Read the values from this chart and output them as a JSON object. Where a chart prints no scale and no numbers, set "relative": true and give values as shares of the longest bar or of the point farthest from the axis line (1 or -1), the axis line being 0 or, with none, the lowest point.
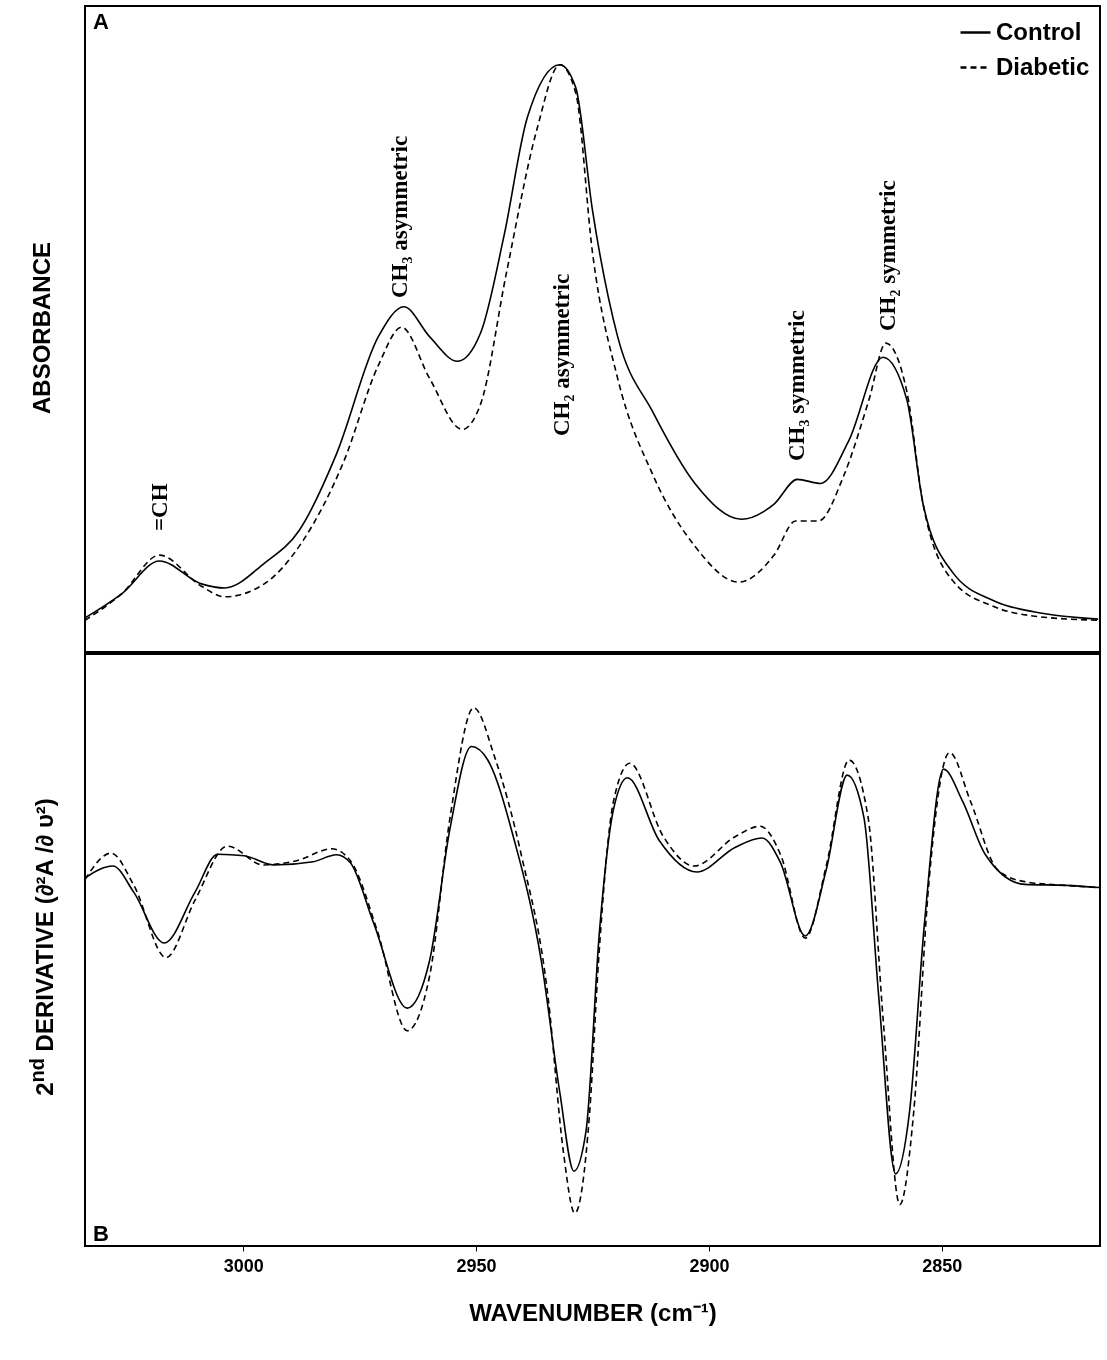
{
  "chart_data": [
    {
      "type": "line",
      "relative": true,
      "ylabel": "ABSORBANCE",
      "xlim": [
        3034,
        2816
      ],
      "xticks": [
        3000,
        2950,
        2900,
        2850
      ],
      "tick_labels": false,
      "legend": "top right",
      "grid": false,
      "annotations": [
        "A",
        "=CH",
        "CH₃ asymmetric",
        "CH₂ asymmetric",
        "CH₃ symmetric",
        "CH₂ symmetric"
      ],
      "series": [
        {
          "name": "Control",
          "color": "#000000",
          "line_style": "solid",
          "x": [
            3034,
            3026,
            3018,
            3009,
            3004,
            2995.5,
            2988,
            2980,
            2971,
            2965.5,
            2960,
            2954,
            2949,
            2944,
            2939,
            2932,
            2928.6,
            2925,
            2919.6,
            2912,
            2903,
            2893,
            2886,
            2881,
            2876,
            2870,
            2862.6,
            2857.5,
            2854,
            2847.7,
            2838.7,
            2830,
            2816.4
          ],
          "values": [
            0.058,
            0.1,
            0.155,
            0.116,
            0.109,
            0.151,
            0.207,
            0.337,
            0.537,
            0.588,
            0.537,
            0.495,
            0.544,
            0.709,
            0.91,
            1.0,
            0.961,
            0.752,
            0.537,
            0.408,
            0.287,
            0.226,
            0.252,
            0.294,
            0.287,
            0.359,
            0.502,
            0.43,
            0.252,
            0.136,
            0.087,
            0.068,
            0.056
          ]
        },
        {
          "name": "Diabetic",
          "color": "#000000",
          "line_style": "dashed",
          "x": [
            3034,
            3026,
            3018,
            3009,
            3004,
            2995.5,
            2987.4,
            2978.5,
            2971,
            2966,
            2960,
            2953,
            2949,
            2943.5,
            2937,
            2932,
            2928.6,
            2925,
            2919.6,
            2912,
            2903,
            2893.6,
            2886,
            2881.4,
            2876.5,
            2871,
            2865.6,
            2862,
            2857.5,
            2854,
            2847.7,
            2838.7,
            2830,
            2816.4
          ],
          "values": [
            0.054,
            0.1,
            0.165,
            0.112,
            0.094,
            0.116,
            0.187,
            0.323,
            0.488,
            0.553,
            0.466,
            0.379,
            0.423,
            0.645,
            0.888,
            1.0,
            0.952,
            0.68,
            0.466,
            0.301,
            0.18,
            0.119,
            0.165,
            0.223,
            0.223,
            0.301,
            0.43,
            0.526,
            0.444,
            0.252,
            0.122,
            0.077,
            0.061,
            0.054
          ]
        }
      ]
    },
    {
      "type": "line",
      "relative": true,
      "ylabel": "2$^{nd}$ DERIVATIVE (∂²A /∂ υ²)",
      "xlabel": "WAVENUMBER (cm⁻¹)",
      "xlim": [
        3034,
        2816
      ],
      "xticks": [
        3000,
        2950,
        2900,
        2850
      ],
      "tick_labels": "x",
      "grid": false,
      "annotations": [
        "B"
      ],
      "series": [
        {
          "color": "#000000",
          "line_style": "solid",
          "x": [
            3034,
            3028,
            3023.5,
            3017,
            3010.4,
            3005.5,
            2999.8,
            2993.4,
            2985,
            2980,
            2977,
            2972,
            2964.8,
            2960,
            2955.6,
            2951,
            2947.5,
            2941.8,
            2936,
            2932,
            2929,
            2926.4,
            2923.5,
            2920.5,
            2917.5,
            2910.7,
            2902.6,
            2894.3,
            2888.6,
            2884.6,
            2879.3,
            2874.8,
            2870.3,
            2866.7,
            2863.5,
            2859.9,
            2856.9,
            2853.7,
            2849.6,
            2845.5,
            2840.6,
            2832.2,
            2823.3,
            2816.2
          ],
          "values": [
            0.684,
            0.706,
            0.657,
            0.563,
            0.657,
            0.728,
            0.725,
            0.708,
            0.714,
            0.727,
            0.712,
            0.6,
            0.442,
            0.53,
            0.776,
            0.928,
            0.903,
            0.754,
            0.53,
            0.284,
            0.139,
            0.213,
            0.585,
            0.811,
            0.87,
            0.754,
            0.695,
            0.741,
            0.758,
            0.712,
            0.576,
            0.699,
            0.875,
            0.796,
            0.461,
            0.134,
            0.25,
            0.6,
            0.886,
            0.826,
            0.727,
            0.672,
            0.67,
            0.666
          ]
        },
        {
          "color": "#000000",
          "line_style": "dashed",
          "x": [
            3034,
            3028.4,
            3023.5,
            3016.6,
            3010.4,
            3003.4,
            2995.7,
            2988.5,
            2981,
            2977,
            2971.2,
            2964.8,
            2960,
            2955.6,
            2950.5,
            2946,
            2940.3,
            2934.5,
            2931.3,
            2928.8,
            2925.6,
            2923.7,
            2920.5,
            2917,
            2909.8,
            2903.2,
            2894.3,
            2889,
            2884.6,
            2879.3,
            2874.8,
            2869.9,
            2865.8,
            2862.6,
            2859,
            2856,
            2852.8,
            2848.3,
            2843.8,
            2838,
            2832.2,
            2823.3,
            2816.2
          ],
          "values": [
            0.681,
            0.73,
            0.67,
            0.536,
            0.642,
            0.743,
            0.708,
            0.716,
            0.738,
            0.716,
            0.585,
            0.4,
            0.501,
            0.796,
            1.0,
            0.908,
            0.727,
            0.459,
            0.178,
            0.061,
            0.25,
            0.53,
            0.826,
            0.897,
            0.761,
            0.706,
            0.761,
            0.78,
            0.727,
            0.572,
            0.706,
            0.903,
            0.796,
            0.424,
            0.077,
            0.25,
            0.67,
            0.917,
            0.826,
            0.699,
            0.677,
            0.67,
            0.666
          ]
        }
      ]
    }
  ]
}
